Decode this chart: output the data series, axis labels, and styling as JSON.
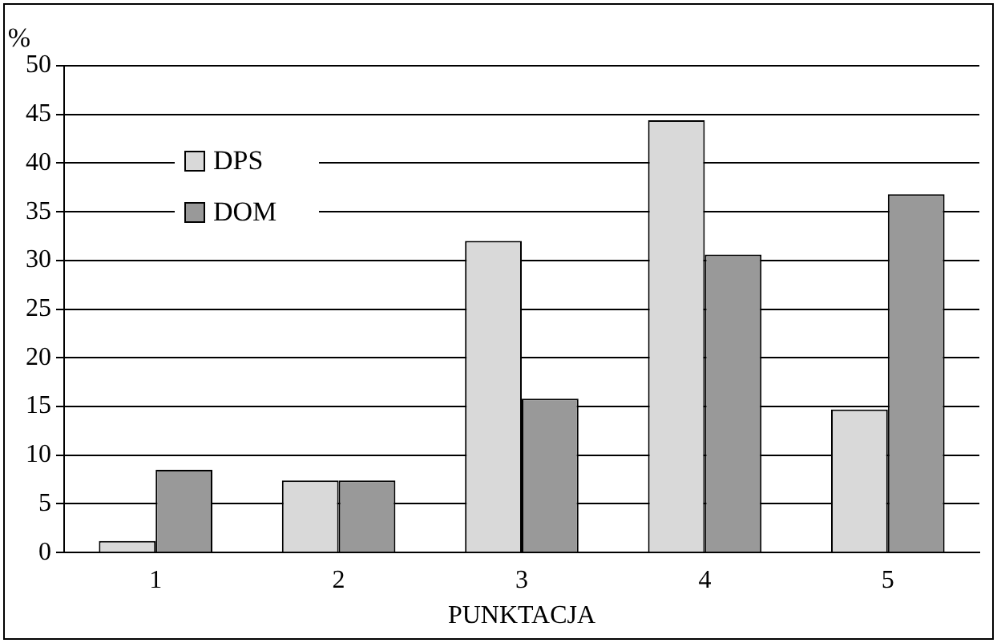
{
  "chart_data": {
    "type": "bar",
    "xlabel": "PUNKTACJA",
    "ylabel": "%",
    "categories": [
      "1",
      "2",
      "3",
      "4",
      "5"
    ],
    "series": [
      {
        "name": "DPS",
        "color": "#d9d9d9",
        "values": [
          1.2,
          7.4,
          32,
          44.4,
          14.7
        ]
      },
      {
        "name": "DOM",
        "color": "#999999",
        "values": [
          8.5,
          7.4,
          15.8,
          30.6,
          36.8
        ]
      }
    ],
    "ylim": [
      0,
      50
    ],
    "yticks": [
      0,
      5,
      10,
      15,
      20,
      25,
      30,
      35,
      40,
      45,
      50
    ],
    "grid": "y",
    "legend": "top left"
  }
}
